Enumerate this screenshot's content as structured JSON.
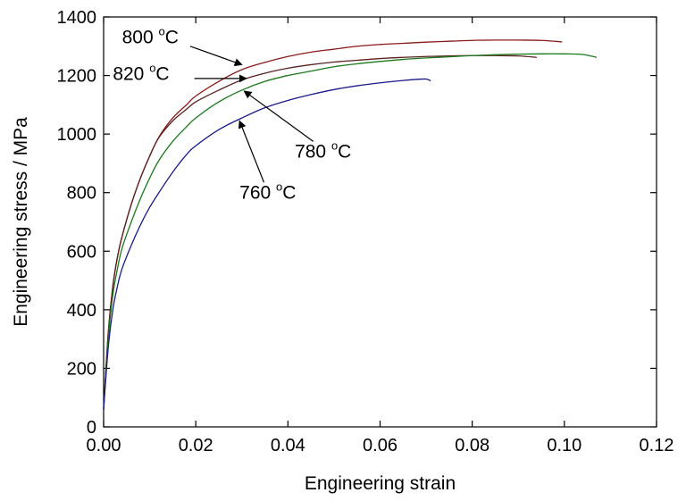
{
  "chart_data": {
    "type": "line",
    "title": "",
    "xlabel": "Engineering strain",
    "ylabel": "Engineering stress / MPa",
    "xlim": [
      0.0,
      0.12
    ],
    "ylim": [
      0,
      1400
    ],
    "xticks": [
      0.0,
      0.02,
      0.04,
      0.06,
      0.08,
      0.1,
      0.12
    ],
    "xtick_labels": [
      "0.00",
      "0.02",
      "0.04",
      "0.06",
      "0.08",
      "0.10",
      "0.12"
    ],
    "yticks": [
      0,
      200,
      400,
      600,
      800,
      1000,
      1200,
      1400
    ],
    "ytick_labels": [
      "0",
      "200",
      "400",
      "600",
      "800",
      "1000",
      "1200",
      "1400"
    ],
    "grid": false,
    "legend": "none",
    "series": [
      {
        "color": "#8b1a1a",
        "x": [
          0.0,
          0.001,
          0.002,
          0.003,
          0.004,
          0.006,
          0.008,
          0.01,
          0.012,
          0.015,
          0.018,
          0.02,
          0.025,
          0.03,
          0.035,
          0.04,
          0.045,
          0.05,
          0.055,
          0.06,
          0.065,
          0.07,
          0.075,
          0.08,
          0.085,
          0.09,
          0.095,
          0.0995
        ],
        "y": [
          60,
          320,
          480,
          580,
          650,
          760,
          850,
          925,
          990,
          1055,
          1100,
          1130,
          1180,
          1220,
          1245,
          1265,
          1280,
          1290,
          1300,
          1306,
          1310,
          1314,
          1317,
          1320,
          1321,
          1321,
          1320,
          1315
        ]
      },
      {
        "color": "#5c2020",
        "x": [
          0.0,
          0.001,
          0.002,
          0.003,
          0.004,
          0.006,
          0.008,
          0.01,
          0.012,
          0.015,
          0.018,
          0.02,
          0.025,
          0.03,
          0.035,
          0.04,
          0.045,
          0.05,
          0.055,
          0.06,
          0.065,
          0.07,
          0.075,
          0.08,
          0.085,
          0.09,
          0.094
        ],
        "y": [
          60,
          320,
          480,
          580,
          650,
          760,
          850,
          925,
          988,
          1045,
          1085,
          1110,
          1150,
          1185,
          1208,
          1225,
          1237,
          1246,
          1252,
          1258,
          1262,
          1265,
          1267,
          1268,
          1268,
          1267,
          1262
        ]
      },
      {
        "color": "#1a7a1a",
        "x": [
          0.0,
          0.001,
          0.002,
          0.003,
          0.004,
          0.006,
          0.008,
          0.01,
          0.012,
          0.015,
          0.018,
          0.02,
          0.025,
          0.03,
          0.035,
          0.04,
          0.045,
          0.05,
          0.055,
          0.06,
          0.065,
          0.07,
          0.075,
          0.08,
          0.085,
          0.09,
          0.095,
          0.1,
          0.104,
          0.107
        ],
        "y": [
          60,
          300,
          450,
          540,
          610,
          700,
          780,
          850,
          910,
          975,
          1025,
          1055,
          1110,
          1150,
          1180,
          1200,
          1215,
          1230,
          1240,
          1248,
          1255,
          1260,
          1264,
          1268,
          1271,
          1273,
          1274,
          1274,
          1272,
          1262
        ]
      },
      {
        "color": "#1a1a8b",
        "x": [
          0.0,
          0.001,
          0.002,
          0.003,
          0.004,
          0.006,
          0.008,
          0.01,
          0.012,
          0.015,
          0.018,
          0.02,
          0.025,
          0.03,
          0.035,
          0.04,
          0.045,
          0.05,
          0.055,
          0.06,
          0.065,
          0.068,
          0.07,
          0.071
        ],
        "y": [
          60,
          270,
          400,
          480,
          540,
          620,
          690,
          750,
          800,
          870,
          930,
          960,
          1015,
          1055,
          1090,
          1115,
          1135,
          1152,
          1165,
          1175,
          1183,
          1187,
          1188,
          1182
        ]
      }
    ],
    "annotations": [
      {
        "value": "800",
        "unit": "C",
        "sup": "o",
        "label_x": 0.004,
        "label_y": 1310,
        "arrow_x1": 0.0188,
        "arrow_y1": 1300,
        "arrow_x2": 0.03,
        "arrow_y2": 1237
      },
      {
        "value": "820",
        "unit": "C",
        "sup": "o",
        "label_x": 0.002,
        "label_y": 1185,
        "arrow_x1": 0.0197,
        "arrow_y1": 1190,
        "arrow_x2": 0.031,
        "arrow_y2": 1190
      },
      {
        "value": "780",
        "unit": "C",
        "sup": "o",
        "label_x": 0.0415,
        "label_y": 920,
        "arrow_x1": 0.0455,
        "arrow_y1": 975,
        "arrow_x2": 0.0305,
        "arrow_y2": 1147
      },
      {
        "value": "760",
        "unit": "C",
        "sup": "o",
        "label_x": 0.0295,
        "label_y": 780,
        "arrow_x1": 0.0348,
        "arrow_y1": 835,
        "arrow_x2": 0.0295,
        "arrow_y2": 1045
      }
    ]
  }
}
